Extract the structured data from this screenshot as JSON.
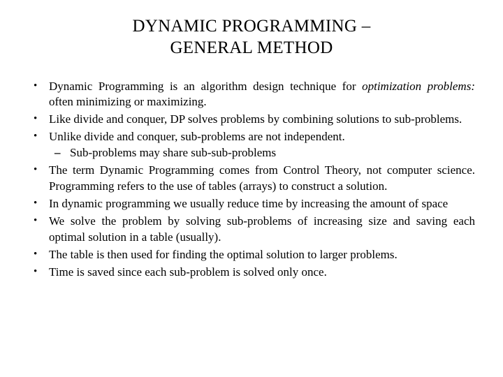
{
  "slide": {
    "title_line1": "DYNAMIC PROGRAMMING –",
    "title_line2": "GENERAL METHOD",
    "bullets": [
      {
        "pre": "Dynamic Programming is an algorithm design technique for ",
        "italic": "optimization problems:",
        "post": " often minimizing or maximizing."
      },
      {
        "text": "Like divide and conquer, DP solves problems by combining solutions to sub-problems."
      },
      {
        "text": "Unlike divide and conquer, sub-problems are not independent.",
        "sub": [
          {
            "text": "Sub-problems may share sub-sub-problems"
          }
        ]
      },
      {
        "text": "The term Dynamic Programming comes from Control Theory, not computer science. Programming refers to the use of tables (arrays) to construct a solution."
      },
      {
        "text": "In dynamic programming we usually reduce time by increasing the amount of space"
      },
      {
        "text": "We solve the problem by solving sub-problems of increasing size and saving each optimal solution in a table (usually)."
      },
      {
        "text": "The table is then used for finding the optimal solution to larger problems."
      },
      {
        "text": "Time is saved since each sub-problem is solved only once."
      }
    ]
  },
  "style": {
    "background_color": "#ffffff",
    "text_color": "#000000",
    "font_family": "Times New Roman",
    "title_fontsize": 25,
    "body_fontsize": 17
  }
}
